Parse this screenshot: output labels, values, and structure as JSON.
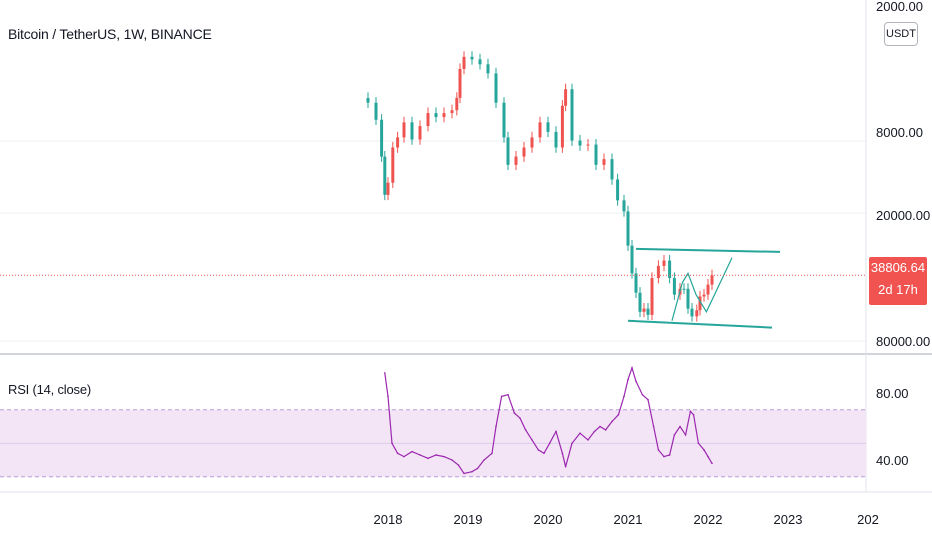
{
  "header": {
    "symbol_title": "Bitcoin / TetherUS, 1W, BINANCE",
    "currency_button": "USDT"
  },
  "indicator": {
    "label": "RSI (14, close)"
  },
  "last_price": {
    "value": "38806.64",
    "countdown": "2d 17h"
  },
  "colors": {
    "up_candle": "#26a69a",
    "down_candle": "#ef5350",
    "rsi_line": "#9c27b0",
    "rsi_band_fill": "#f3e5f5",
    "channel_line": "#26a69a",
    "last_price_line": "#f05350",
    "grid": "#e0e3eb"
  },
  "chart_data": [
    {
      "type": "candlestick",
      "title": "Bitcoin / TetherUS, 1W, BINANCE",
      "scale": "log, inverted price axis",
      "y_tick_labels": [
        "2000.00",
        "8000.00",
        "20000.00",
        "80000.00"
      ],
      "x_tick_labels": [
        "2018",
        "2019",
        "2020",
        "2021",
        "2022",
        "2023",
        "202"
      ],
      "last_price": 38806.64,
      "series": [
        {
          "name": "close",
          "x": [
            2017.75,
            2017.85,
            2017.92,
            2017.96,
            2018.0,
            2018.06,
            2018.12,
            2018.2,
            2018.3,
            2018.4,
            2018.5,
            2018.6,
            2018.7,
            2018.8,
            2018.86,
            2018.9,
            2018.95,
            2019.05,
            2019.15,
            2019.25,
            2019.35,
            2019.45,
            2019.5,
            2019.6,
            2019.7,
            2019.8,
            2019.9,
            2020.0,
            2020.1,
            2020.18,
            2020.22,
            2020.3,
            2020.4,
            2020.5,
            2020.6,
            2020.7,
            2020.8,
            2020.87,
            2020.95,
            2021.0,
            2021.05,
            2021.1,
            2021.15,
            2021.2,
            2021.25,
            2021.3,
            2021.38,
            2021.45,
            2021.52,
            2021.58,
            2021.65,
            2021.7,
            2021.75,
            2021.8,
            2021.86,
            2021.9,
            2021.95,
            2022.0,
            2022.05
          ],
          "values": [
            5800,
            7000,
            10500,
            16000,
            14000,
            9500,
            8500,
            7200,
            8700,
            7500,
            6500,
            6800,
            6500,
            6300,
            5500,
            4000,
            3500,
            3600,
            3800,
            4200,
            5800,
            8500,
            11500,
            10500,
            9500,
            8500,
            7200,
            8000,
            9500,
            6000,
            5000,
            8800,
            9300,
            9200,
            11500,
            10800,
            13500,
            17000,
            19200,
            28000,
            38000,
            47000,
            58000,
            56000,
            60000,
            40000,
            35000,
            33000,
            40000,
            48000,
            45000,
            45000,
            56000,
            61000,
            57000,
            49000,
            48000,
            43000,
            38806.64
          ]
        }
      ],
      "annotations": [
        {
          "type": "channel",
          "upper": [
            [
              2021.0,
              64000
            ],
            [
              2022.8,
              69000
            ]
          ],
          "lower": [
            [
              2021.1,
              29000
            ],
            [
              2022.9,
              30000
            ]
          ]
        },
        {
          "type": "polyline",
          "points": [
            [
              2021.55,
              64000
            ],
            [
              2021.68,
              42000
            ],
            [
              2021.75,
              38000
            ],
            [
              2021.85,
              48000
            ],
            [
              2021.98,
              58000
            ],
            [
              2022.3,
              32000
            ]
          ]
        }
      ]
    },
    {
      "type": "line",
      "title": "RSI (14, close)",
      "y_tick_labels": [
        "80.00",
        "40.00"
      ],
      "bands": [
        30,
        70
      ],
      "series": [
        {
          "name": "RSI",
          "x": [
            2017.96,
            2018.0,
            2018.05,
            2018.12,
            2018.2,
            2018.3,
            2018.4,
            2018.5,
            2018.6,
            2018.7,
            2018.8,
            2018.88,
            2018.95,
            2019.05,
            2019.12,
            2019.2,
            2019.3,
            2019.35,
            2019.42,
            2019.5,
            2019.58,
            2019.65,
            2019.72,
            2019.8,
            2019.88,
            2019.95,
            2020.02,
            2020.1,
            2020.18,
            2020.22,
            2020.3,
            2020.4,
            2020.5,
            2020.58,
            2020.65,
            2020.72,
            2020.8,
            2020.88,
            2020.95,
            2021.0,
            2021.05,
            2021.1,
            2021.18,
            2021.25,
            2021.32,
            2021.38,
            2021.45,
            2021.52,
            2021.58,
            2021.65,
            2021.72,
            2021.78,
            2021.82,
            2021.88,
            2021.95,
            2022.0,
            2022.05
          ],
          "values": [
            92,
            78,
            50,
            44,
            42,
            45,
            43,
            41,
            43,
            42,
            40,
            37,
            32,
            33,
            35,
            40,
            44,
            60,
            78,
            79,
            68,
            65,
            58,
            52,
            46,
            44,
            50,
            57,
            44,
            36,
            50,
            56,
            52,
            57,
            60,
            58,
            63,
            67,
            78,
            88,
            95,
            87,
            79,
            76,
            60,
            46,
            42,
            43,
            55,
            60,
            55,
            69,
            67,
            50,
            46,
            42,
            38
          ]
        }
      ]
    }
  ]
}
